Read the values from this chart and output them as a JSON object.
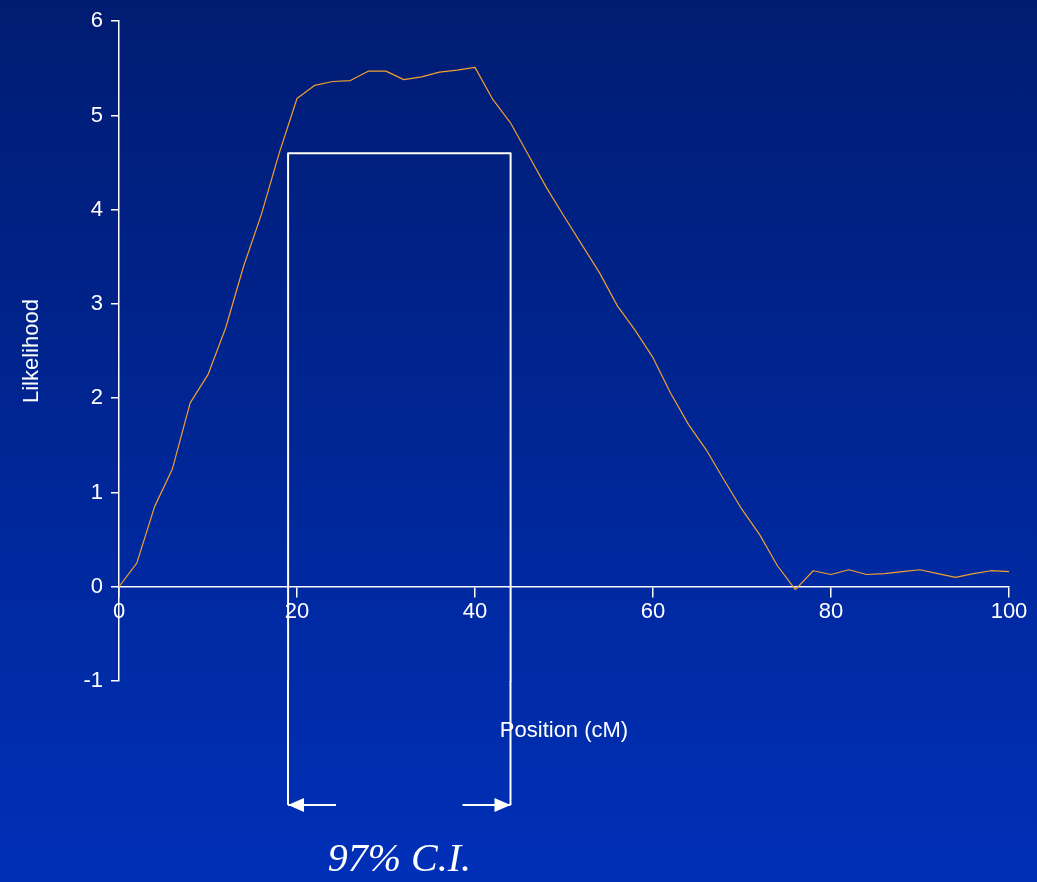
{
  "chart_data": {
    "type": "line",
    "xlabel": "Position (cM)",
    "ylabel": "Lilkelihood",
    "annotations": [
      "97% C.I."
    ],
    "xlim": [
      0,
      100
    ],
    "xticks": [
      0,
      20,
      40,
      60,
      80,
      100
    ],
    "ylim": [
      -1,
      6
    ],
    "yticks": [
      -1,
      0,
      1,
      2,
      3,
      4,
      5,
      6
    ],
    "grid": false,
    "legend": false,
    "marker": "none",
    "line_style": "solid",
    "series": [
      {
        "color": "#f0a030",
        "x": [
          0,
          2,
          4,
          6,
          8,
          10,
          12,
          14,
          16,
          18,
          20,
          22,
          24,
          26,
          28,
          30,
          32,
          34,
          36,
          38,
          40,
          42,
          44,
          46,
          48,
          50,
          52,
          54,
          56,
          58,
          60,
          62,
          64,
          66,
          68,
          70,
          72,
          74,
          76,
          78,
          80,
          82,
          84,
          86,
          88,
          90,
          92,
          94,
          96,
          98,
          100
        ],
        "values": [
          0,
          0.25,
          0.85,
          1.25,
          1.95,
          2.25,
          2.75,
          3.4,
          3.95,
          4.6,
          5.18,
          5.32,
          5.36,
          5.37,
          5.47,
          5.47,
          5.38,
          5.41,
          5.46,
          5.48,
          5.51,
          5.17,
          4.92,
          4.58,
          4.24,
          3.93,
          3.63,
          3.33,
          2.98,
          2.72,
          2.43,
          2.05,
          1.72,
          1.45,
          1.13,
          0.82,
          0.55,
          0.22,
          -0.03,
          0.17,
          0.13,
          0.18,
          0.13,
          0.14,
          0.16,
          0.18,
          0.14,
          0.1,
          0.14,
          0.17,
          0.16
        ]
      },
      {
        "color": "#ffffff",
        "x": [
          19,
          19,
          44,
          44
        ],
        "values": [
          -1,
          4.6,
          4.6,
          -1
        ]
      }
    ]
  }
}
